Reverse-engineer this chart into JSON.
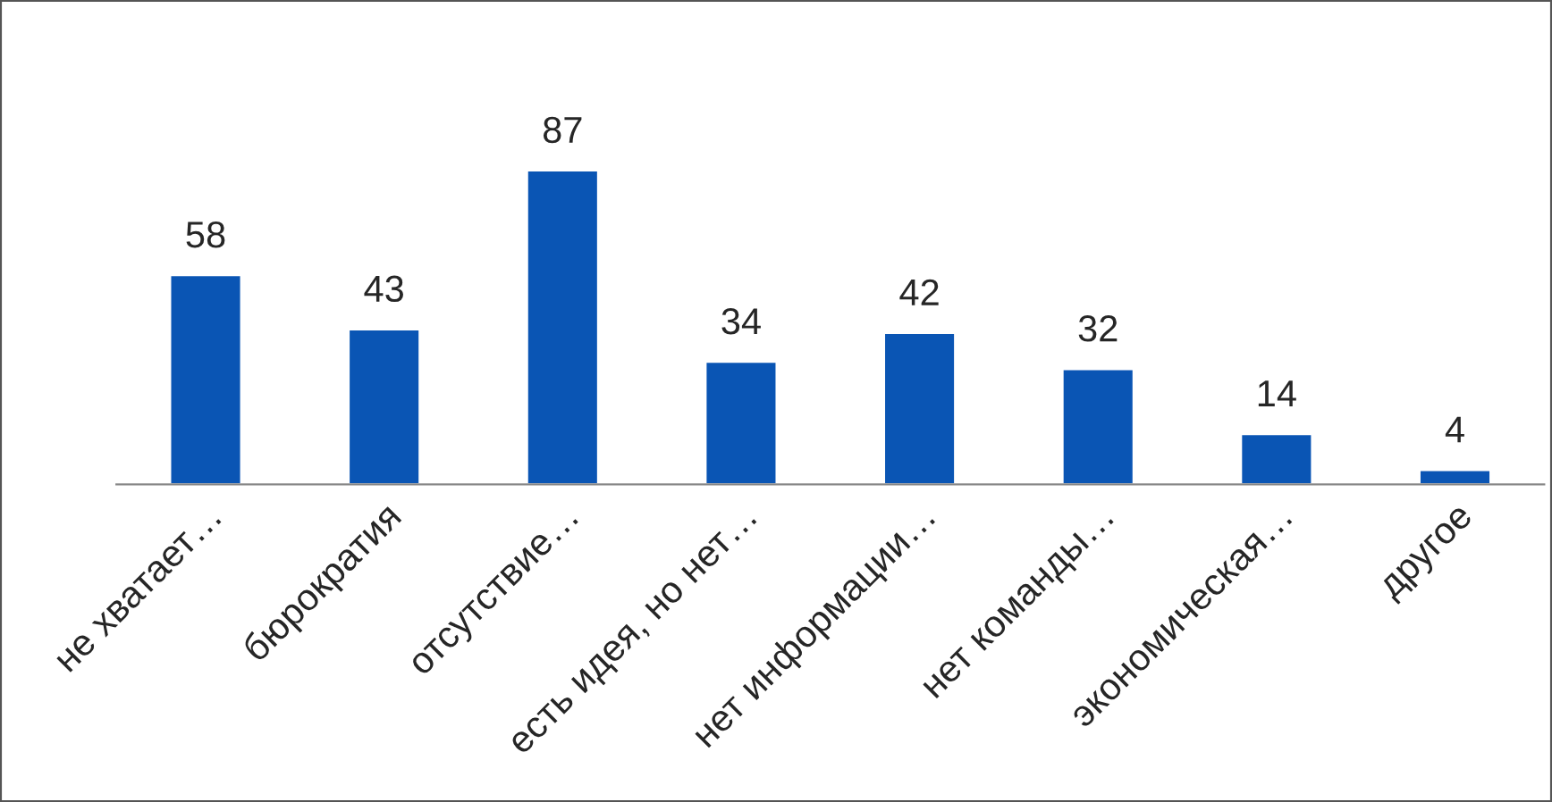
{
  "chart_data": {
    "type": "bar",
    "categories": [
      "не хватает…",
      "бюрократия",
      "отсутствие…",
      "есть идея, но нет…",
      "нет информации…",
      "нет команды…",
      "экономическая…",
      "другое"
    ],
    "values": [
      58,
      43,
      87,
      34,
      42,
      32,
      14,
      4
    ],
    "color": "#0a55b4",
    "data_labels": true,
    "grid": false,
    "legend": false
  }
}
